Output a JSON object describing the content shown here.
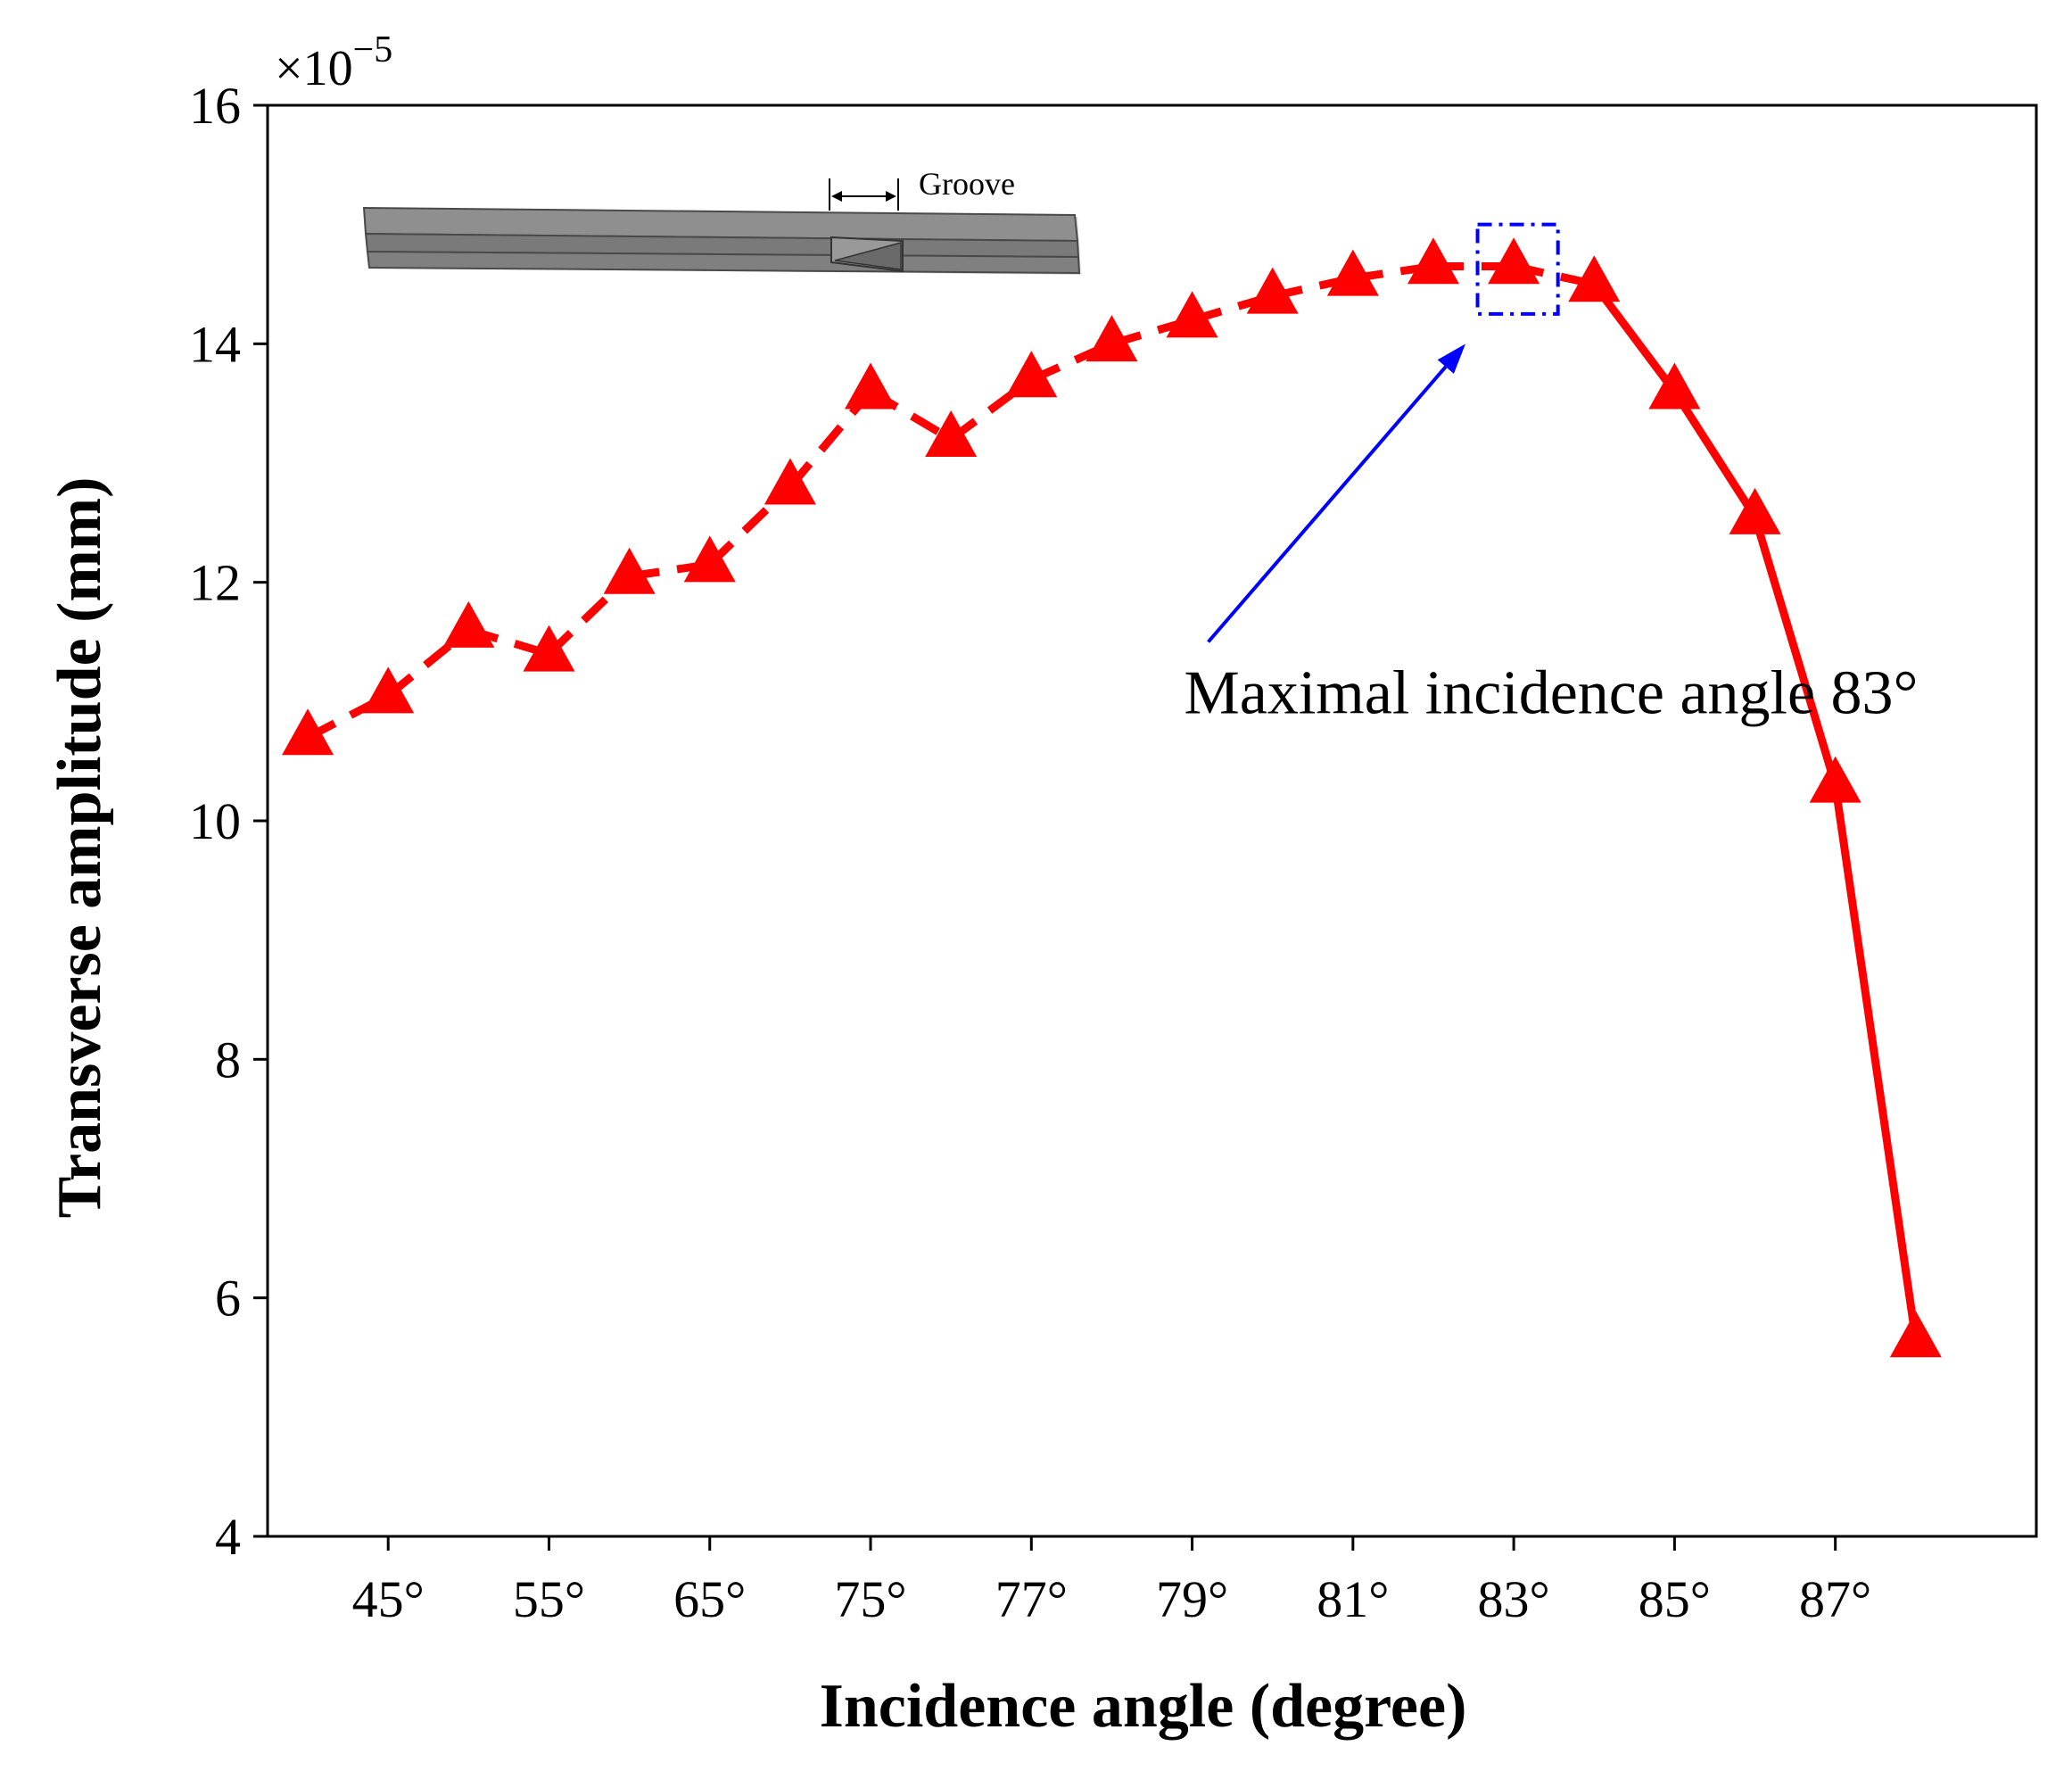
{
  "chart_data": {
    "type": "line",
    "title": "",
    "xlabel": "Incidence angle (degree)",
    "ylabel": "Transverse amplitude (mm)",
    "y_exponent_base": "×10",
    "y_exponent_power": "−5",
    "ylim": [
      4,
      16
    ],
    "yticks": [
      "4",
      "6",
      "8",
      "10",
      "12",
      "14",
      "16"
    ],
    "x_tick_labels": [
      "45°",
      "55°",
      "65°",
      "75°",
      "77°",
      "79°",
      "81°",
      "83°",
      "85°",
      "87°"
    ],
    "x_tick_positions": [
      1,
      3,
      5,
      7,
      9,
      11,
      13,
      15,
      17,
      19
    ],
    "xlim": [
      -0.5,
      21.5
    ],
    "grid": false,
    "series": [
      {
        "name": "Transverse amplitude",
        "color": "#ff0000",
        "marker": "triangle",
        "x": [
          0,
          1,
          2,
          3,
          4,
          5,
          6,
          7,
          8,
          9,
          10,
          11,
          12,
          13,
          14,
          15,
          16,
          17,
          18,
          19,
          20
        ],
        "values": [
          10.7,
          11.05,
          11.6,
          11.4,
          12.05,
          12.15,
          12.8,
          13.6,
          13.2,
          13.7,
          14.0,
          14.2,
          14.4,
          14.55,
          14.65,
          14.65,
          14.5,
          13.6,
          12.55,
          10.3,
          5.65
        ]
      }
    ],
    "annotations": [
      {
        "text": "Maximal incidence angle 83°",
        "text_anchor_data": [
          10.9,
          10.9
        ],
        "arrow_from_data": [
          11.2,
          11.5
        ],
        "arrow_to_data": [
          14.4,
          14.0
        ],
        "color": "#0000ff"
      }
    ],
    "highlight_box": {
      "x_range": [
        14.55,
        15.55
      ],
      "y_range": [
        14.25,
        15.0
      ],
      "color": "#0000ff",
      "style": "dash-dot"
    },
    "inset": {
      "label": "Groove"
    }
  }
}
